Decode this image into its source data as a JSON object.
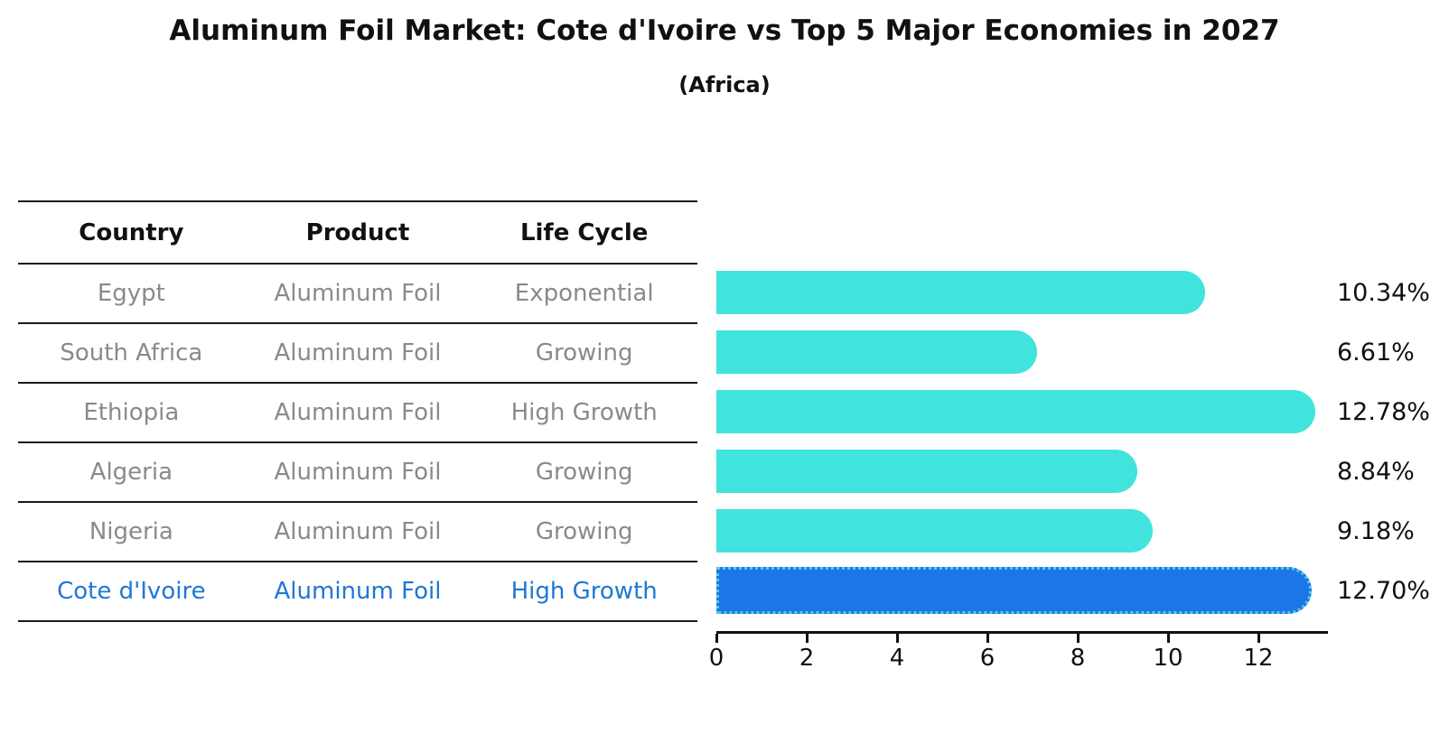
{
  "title": "Aluminum Foil Market: Cote d'Ivoire vs Top 5 Major Economies in 2027",
  "subtitle": "(Africa)",
  "table": {
    "headers": [
      "Country",
      "Product",
      "Life Cycle"
    ],
    "rows": [
      {
        "country": "Egypt",
        "product": "Aluminum Foil",
        "life_cycle": "Exponential",
        "highlight": false
      },
      {
        "country": "South Africa",
        "product": "Aluminum Foil",
        "life_cycle": "Growing",
        "highlight": false
      },
      {
        "country": "Ethiopia",
        "product": "Aluminum Foil",
        "life_cycle": "High Growth",
        "highlight": false
      },
      {
        "country": "Algeria",
        "product": "Aluminum Foil",
        "life_cycle": "Growing",
        "highlight": false
      },
      {
        "country": "Nigeria",
        "product": "Aluminum Foil",
        "life_cycle": "Growing",
        "highlight": false
      },
      {
        "country": "Cote d'Ivoire",
        "product": "Aluminum Foil",
        "life_cycle": "High Growth",
        "highlight": true
      }
    ]
  },
  "chart_data": {
    "type": "bar",
    "orientation": "horizontal",
    "title": "Aluminum Foil Market: Cote d'Ivoire vs Top 5 Major Economies in 2027",
    "subtitle": "(Africa)",
    "categories": [
      "Egypt",
      "South Africa",
      "Ethiopia",
      "Algeria",
      "Nigeria",
      "Cote d'Ivoire"
    ],
    "values": [
      10.34,
      6.61,
      12.78,
      8.84,
      9.18,
      12.7
    ],
    "labels": [
      "10.34%",
      "6.61%",
      "12.78%",
      "8.84%",
      "9.18%",
      "12.70%"
    ],
    "xticks": [
      0,
      2,
      4,
      6,
      8,
      10,
      12
    ],
    "xlim": [
      0,
      13.5
    ],
    "grid": false,
    "legend": "none",
    "highlight_index": 5,
    "bar_color": "#40e4dc",
    "highlight_color": "#1e76e6",
    "highlight_edge_color": "#4ecbe9",
    "highlight_text_color": "#1f77d4"
  }
}
